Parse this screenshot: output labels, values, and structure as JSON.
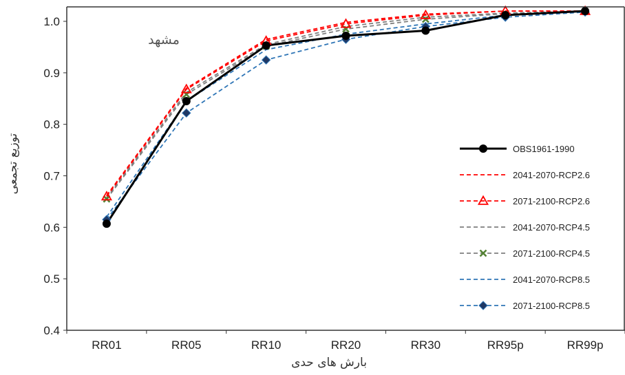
{
  "chart_data": {
    "type": "line",
    "title": "",
    "annotation": "مشهد",
    "xlabel": "بارش های حدی",
    "ylabel": "توزیع تجمعی",
    "categories": [
      "RR01",
      "RR05",
      "RR10",
      "RR20",
      "RR30",
      "RR95p",
      "RR99p"
    ],
    "ylim": [
      0.4,
      1.0
    ],
    "yticks": [
      "0.4",
      "0.5",
      "0.6",
      "0.7",
      "0.8",
      "0.9",
      "1.0"
    ],
    "legend_position": "right",
    "series": [
      {
        "name": "OBS1961-1990",
        "color": "#000000",
        "dash": "solid",
        "marker": "circle",
        "values": [
          0.607,
          0.845,
          0.953,
          0.972,
          0.982,
          1.012,
          1.02
        ]
      },
      {
        "name": "2041-2070-RCP2.6",
        "color": "#ff0000",
        "dash": "dashed",
        "marker": "none",
        "values": [
          0.662,
          0.87,
          0.965,
          0.998,
          1.014,
          1.02,
          1.02
        ]
      },
      {
        "name": "2071-2100-RCP2.6",
        "color": "#ff0000",
        "dash": "dashed",
        "marker": "triangle",
        "values": [
          0.66,
          0.868,
          0.962,
          0.995,
          1.012,
          1.02,
          1.02
        ]
      },
      {
        "name": "2041-2070-RCP4.5",
        "color": "#7f7f7f",
        "dash": "dashed",
        "marker": "none",
        "values": [
          0.657,
          0.862,
          0.955,
          0.99,
          1.008,
          1.016,
          1.02
        ]
      },
      {
        "name": "2071-2100-RCP4.5",
        "color": "#7f7f7f",
        "dash": "dashed",
        "marker": "x",
        "marker_color": "#548235",
        "values": [
          0.655,
          0.858,
          0.952,
          0.985,
          1.004,
          1.015,
          1.019
        ]
      },
      {
        "name": "2041-2070-RCP8.5",
        "color": "#2e75b6",
        "dash": "dashed",
        "marker": "none",
        "values": [
          0.62,
          0.845,
          0.945,
          0.975,
          0.995,
          1.012,
          1.019
        ]
      },
      {
        "name": "2071-2100-RCP8.5",
        "color": "#2e75b6",
        "dash": "dashed",
        "marker": "diamond",
        "marker_color": "#1f3864",
        "values": [
          0.615,
          0.822,
          0.925,
          0.965,
          0.99,
          1.008,
          1.018
        ]
      }
    ]
  }
}
